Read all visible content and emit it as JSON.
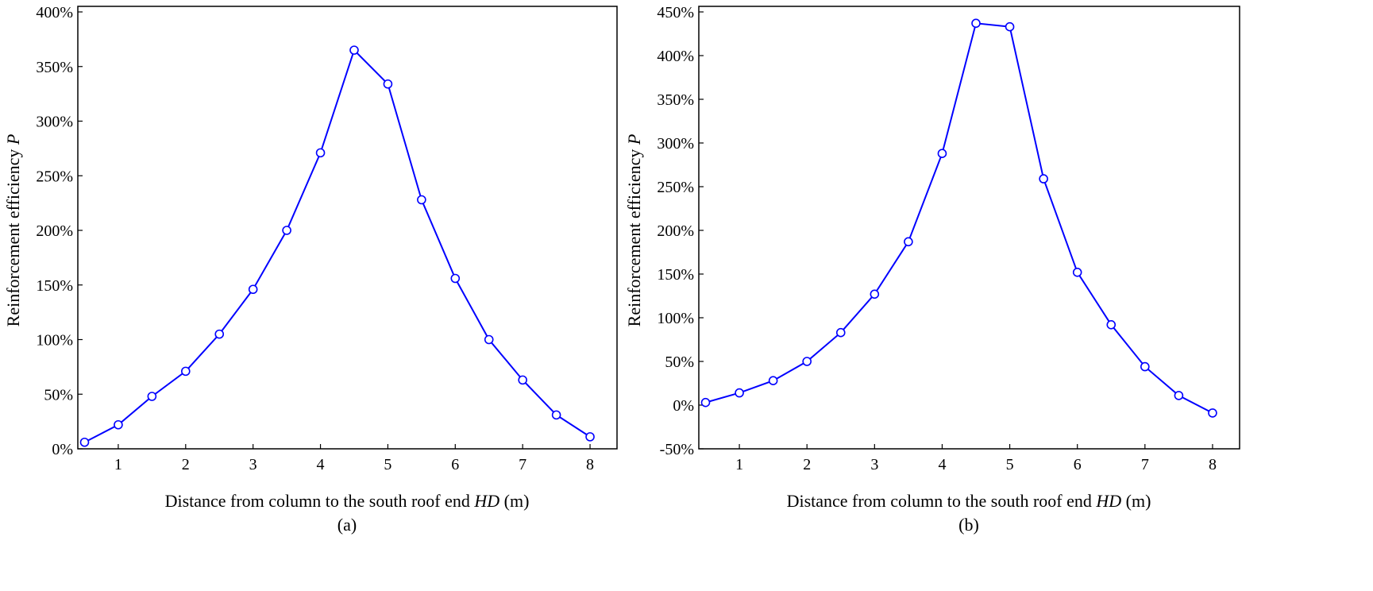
{
  "chart_data": [
    {
      "type": "line",
      "panel_label": "(a)",
      "xlabel": "Distance from column to the south roof end ",
      "xlabel_italic": "HD",
      "xlabel_unit": " (m)",
      "ylabel": "Reinforcement efficiency ",
      "ylabel_italic": "P",
      "xlim": [
        0.4,
        8.4
      ],
      "ylim": [
        0,
        400
      ],
      "xticks": [
        1,
        2,
        3,
        4,
        5,
        6,
        7,
        8
      ],
      "yticks": [
        0,
        50,
        100,
        150,
        200,
        250,
        300,
        350,
        400
      ],
      "ytick_labels": [
        "0%",
        "50%",
        "100%",
        "150%",
        "200%",
        "250%",
        "300%",
        "350%",
        "400%"
      ],
      "grid": false,
      "color": "#0000ff",
      "x": [
        0.5,
        1,
        1.5,
        2,
        2.5,
        3,
        3.5,
        4,
        4.5,
        5,
        5.5,
        6,
        6.5,
        7,
        7.5,
        8
      ],
      "y": [
        6,
        22,
        48,
        71,
        105,
        146,
        200,
        271,
        365,
        334,
        228,
        156,
        100,
        63,
        31,
        11
      ]
    },
    {
      "type": "line",
      "panel_label": "(b)",
      "xlabel": "Distance from column to the south roof end ",
      "xlabel_italic": "HD",
      "xlabel_unit": " (m)",
      "ylabel": "Reinforcement efficiency ",
      "ylabel_italic": "P",
      "xlim": [
        0.4,
        8.4
      ],
      "ylim": [
        -50,
        450
      ],
      "xticks": [
        1,
        2,
        3,
        4,
        5,
        6,
        7,
        8
      ],
      "yticks": [
        -50,
        0,
        50,
        100,
        150,
        200,
        250,
        300,
        350,
        400,
        450
      ],
      "ytick_labels": [
        "-50%",
        "0%",
        "50%",
        "100%",
        "150%",
        "200%",
        "250%",
        "300%",
        "350%",
        "400%",
        "450%"
      ],
      "grid": false,
      "color": "#0000ff",
      "x": [
        0.5,
        1,
        1.5,
        2,
        2.5,
        3,
        3.5,
        4,
        4.5,
        5,
        5.5,
        6,
        6.5,
        7,
        7.5,
        8
      ],
      "y": [
        3,
        14,
        28,
        50,
        83,
        127,
        187,
        288,
        437,
        433,
        259,
        152,
        92,
        44,
        11,
        -9
      ]
    }
  ]
}
